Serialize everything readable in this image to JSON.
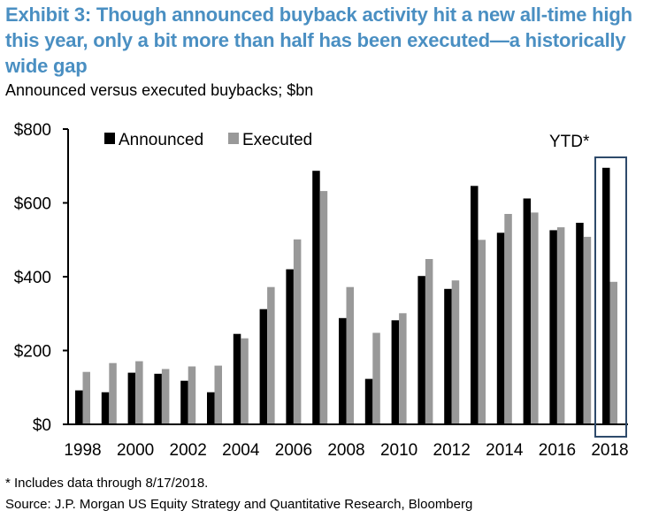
{
  "header": {
    "title": "Exhibit 3: Though announced buyback activity hit a new all-time high this year, only a bit more than half has been executed—a historically wide gap",
    "subtitle": "Announced versus executed buybacks; $bn"
  },
  "footer": {
    "footnote": "* Includes data through 8/17/2018.",
    "source": "Source: J.P. Morgan US Equity Strategy and Quantitative Research, Bloomberg"
  },
  "colors": {
    "title": "#4a8fc2",
    "announced": "#000000",
    "executed": "#999999",
    "highlight_box": "#2e4a6b"
  },
  "chart_data": {
    "type": "bar",
    "title": "Announced versus executed buybacks; $bn",
    "xlabel": "",
    "ylabel": "",
    "ylim": [
      0,
      800
    ],
    "yticks": [
      0,
      200,
      400,
      600,
      800
    ],
    "ytick_labels": [
      "$0",
      "$200",
      "$400",
      "$600",
      "$800"
    ],
    "categories": [
      "1998",
      "1999",
      "2000",
      "2001",
      "2002",
      "2003",
      "2004",
      "2005",
      "2006",
      "2007",
      "2008",
      "2009",
      "2010",
      "2011",
      "2012",
      "2013",
      "2014",
      "2015",
      "2016",
      "2017",
      "2018"
    ],
    "xtick_labels": [
      "1998",
      "2000",
      "2002",
      "2004",
      "2006",
      "2008",
      "2010",
      "2012",
      "2014",
      "2016",
      "2018"
    ],
    "series": [
      {
        "name": "Announced",
        "values": [
          92,
          87,
          140,
          137,
          118,
          87,
          245,
          312,
          420,
          687,
          288,
          123,
          282,
          402,
          367,
          646,
          519,
          612,
          526,
          546,
          695
        ]
      },
      {
        "name": "Executed",
        "values": [
          142,
          166,
          171,
          150,
          157,
          159,
          233,
          372,
          501,
          632,
          372,
          248,
          301,
          448,
          390,
          500,
          570,
          574,
          534,
          508,
          386
        ]
      }
    ],
    "legend": {
      "position": "top-left",
      "entries": [
        "Announced",
        "Executed"
      ]
    },
    "grid": false,
    "annotations": [
      {
        "text": "YTD*",
        "target": "2018",
        "highlight": "box"
      }
    ]
  }
}
